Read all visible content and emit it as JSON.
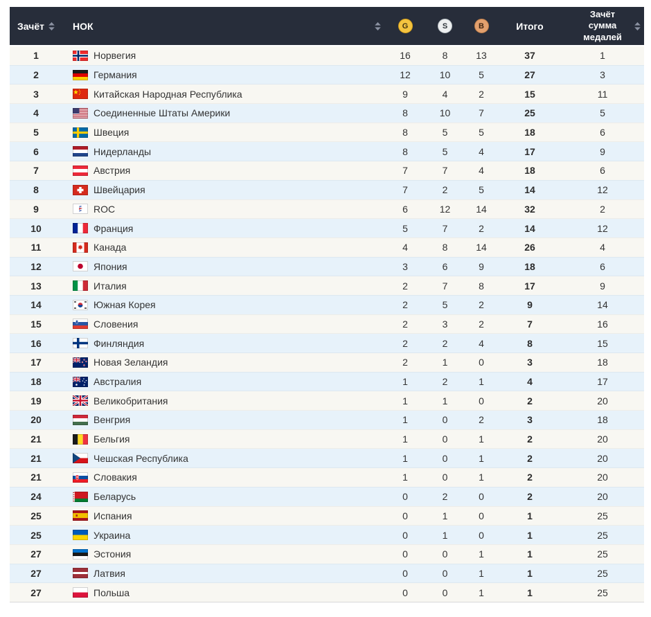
{
  "colors": {
    "header_bg": "#272d3a",
    "header_text": "#ffffff",
    "row_odd": "#f8f7f2",
    "row_even": "#e7f2fa",
    "gold": "#f4c440",
    "silver": "#edeff0",
    "bronze": "#e2a06e",
    "sort_icon": "#8b92a2"
  },
  "table": {
    "columns": {
      "rank_label": "Зачёт",
      "noc_label": "НОК",
      "gold_label": "G",
      "silver_label": "S",
      "bronze_label": "B",
      "total_label": "Итого",
      "sum_rank_label": "Зачёт сумма медалей"
    },
    "rows": [
      {
        "rank": "1",
        "flag": "no",
        "country": "Норвегия",
        "gold": 16,
        "silver": 8,
        "bronze": 13,
        "total": 37,
        "sum_rank": 1
      },
      {
        "rank": "2",
        "flag": "de",
        "country": "Германия",
        "gold": 12,
        "silver": 10,
        "bronze": 5,
        "total": 27,
        "sum_rank": 3
      },
      {
        "rank": "3",
        "flag": "cn",
        "country": "Китайская Народная Республика",
        "gold": 9,
        "silver": 4,
        "bronze": 2,
        "total": 15,
        "sum_rank": 11
      },
      {
        "rank": "4",
        "flag": "us",
        "country": "Соединенные Штаты Америки",
        "gold": 8,
        "silver": 10,
        "bronze": 7,
        "total": 25,
        "sum_rank": 5
      },
      {
        "rank": "5",
        "flag": "se",
        "country": "Швеция",
        "gold": 8,
        "silver": 5,
        "bronze": 5,
        "total": 18,
        "sum_rank": 6
      },
      {
        "rank": "6",
        "flag": "nl",
        "country": "Нидерланды",
        "gold": 8,
        "silver": 5,
        "bronze": 4,
        "total": 17,
        "sum_rank": 9
      },
      {
        "rank": "7",
        "flag": "at",
        "country": "Австрия",
        "gold": 7,
        "silver": 7,
        "bronze": 4,
        "total": 18,
        "sum_rank": 6
      },
      {
        "rank": "8",
        "flag": "ch",
        "country": "Швейцария",
        "gold": 7,
        "silver": 2,
        "bronze": 5,
        "total": 14,
        "sum_rank": 12
      },
      {
        "rank": "9",
        "flag": "roc",
        "country": "ROC",
        "gold": 6,
        "silver": 12,
        "bronze": 14,
        "total": 32,
        "sum_rank": 2
      },
      {
        "rank": "10",
        "flag": "fr",
        "country": "Франция",
        "gold": 5,
        "silver": 7,
        "bronze": 2,
        "total": 14,
        "sum_rank": 12
      },
      {
        "rank": "11",
        "flag": "ca",
        "country": "Канада",
        "gold": 4,
        "silver": 8,
        "bronze": 14,
        "total": 26,
        "sum_rank": 4
      },
      {
        "rank": "12",
        "flag": "jp",
        "country": "Япония",
        "gold": 3,
        "silver": 6,
        "bronze": 9,
        "total": 18,
        "sum_rank": 6
      },
      {
        "rank": "13",
        "flag": "it",
        "country": "Италия",
        "gold": 2,
        "silver": 7,
        "bronze": 8,
        "total": 17,
        "sum_rank": 9
      },
      {
        "rank": "14",
        "flag": "kr",
        "country": "Южная Корея",
        "gold": 2,
        "silver": 5,
        "bronze": 2,
        "total": 9,
        "sum_rank": 14
      },
      {
        "rank": "15",
        "flag": "si",
        "country": "Словения",
        "gold": 2,
        "silver": 3,
        "bronze": 2,
        "total": 7,
        "sum_rank": 16
      },
      {
        "rank": "16",
        "flag": "fi",
        "country": "Финляндия",
        "gold": 2,
        "silver": 2,
        "bronze": 4,
        "total": 8,
        "sum_rank": 15
      },
      {
        "rank": "17",
        "flag": "nz",
        "country": "Новая Зеландия",
        "gold": 2,
        "silver": 1,
        "bronze": 0,
        "total": 3,
        "sum_rank": 18
      },
      {
        "rank": "18",
        "flag": "au",
        "country": "Австралия",
        "gold": 1,
        "silver": 2,
        "bronze": 1,
        "total": 4,
        "sum_rank": 17
      },
      {
        "rank": "19",
        "flag": "gb",
        "country": "Великобритания",
        "gold": 1,
        "silver": 1,
        "bronze": 0,
        "total": 2,
        "sum_rank": 20
      },
      {
        "rank": "20",
        "flag": "hu",
        "country": "Венгрия",
        "gold": 1,
        "silver": 0,
        "bronze": 2,
        "total": 3,
        "sum_rank": 18
      },
      {
        "rank": "21",
        "flag": "be",
        "country": "Бельгия",
        "gold": 1,
        "silver": 0,
        "bronze": 1,
        "total": 2,
        "sum_rank": 20
      },
      {
        "rank": "21",
        "flag": "cz",
        "country": "Чешская Республика",
        "gold": 1,
        "silver": 0,
        "bronze": 1,
        "total": 2,
        "sum_rank": 20
      },
      {
        "rank": "21",
        "flag": "sk",
        "country": "Словакия",
        "gold": 1,
        "silver": 0,
        "bronze": 1,
        "total": 2,
        "sum_rank": 20
      },
      {
        "rank": "24",
        "flag": "by",
        "country": "Беларусь",
        "gold": 0,
        "silver": 2,
        "bronze": 0,
        "total": 2,
        "sum_rank": 20
      },
      {
        "rank": "25",
        "flag": "es",
        "country": "Испания",
        "gold": 0,
        "silver": 1,
        "bronze": 0,
        "total": 1,
        "sum_rank": 25
      },
      {
        "rank": "25",
        "flag": "ua",
        "country": "Украина",
        "gold": 0,
        "silver": 1,
        "bronze": 0,
        "total": 1,
        "sum_rank": 25
      },
      {
        "rank": "27",
        "flag": "ee",
        "country": "Эстония",
        "gold": 0,
        "silver": 0,
        "bronze": 1,
        "total": 1,
        "sum_rank": 25
      },
      {
        "rank": "27",
        "flag": "lv",
        "country": "Латвия",
        "gold": 0,
        "silver": 0,
        "bronze": 1,
        "total": 1,
        "sum_rank": 25
      },
      {
        "rank": "27",
        "flag": "pl",
        "country": "Польша",
        "gold": 0,
        "silver": 0,
        "bronze": 1,
        "total": 1,
        "sum_rank": 25
      }
    ]
  }
}
